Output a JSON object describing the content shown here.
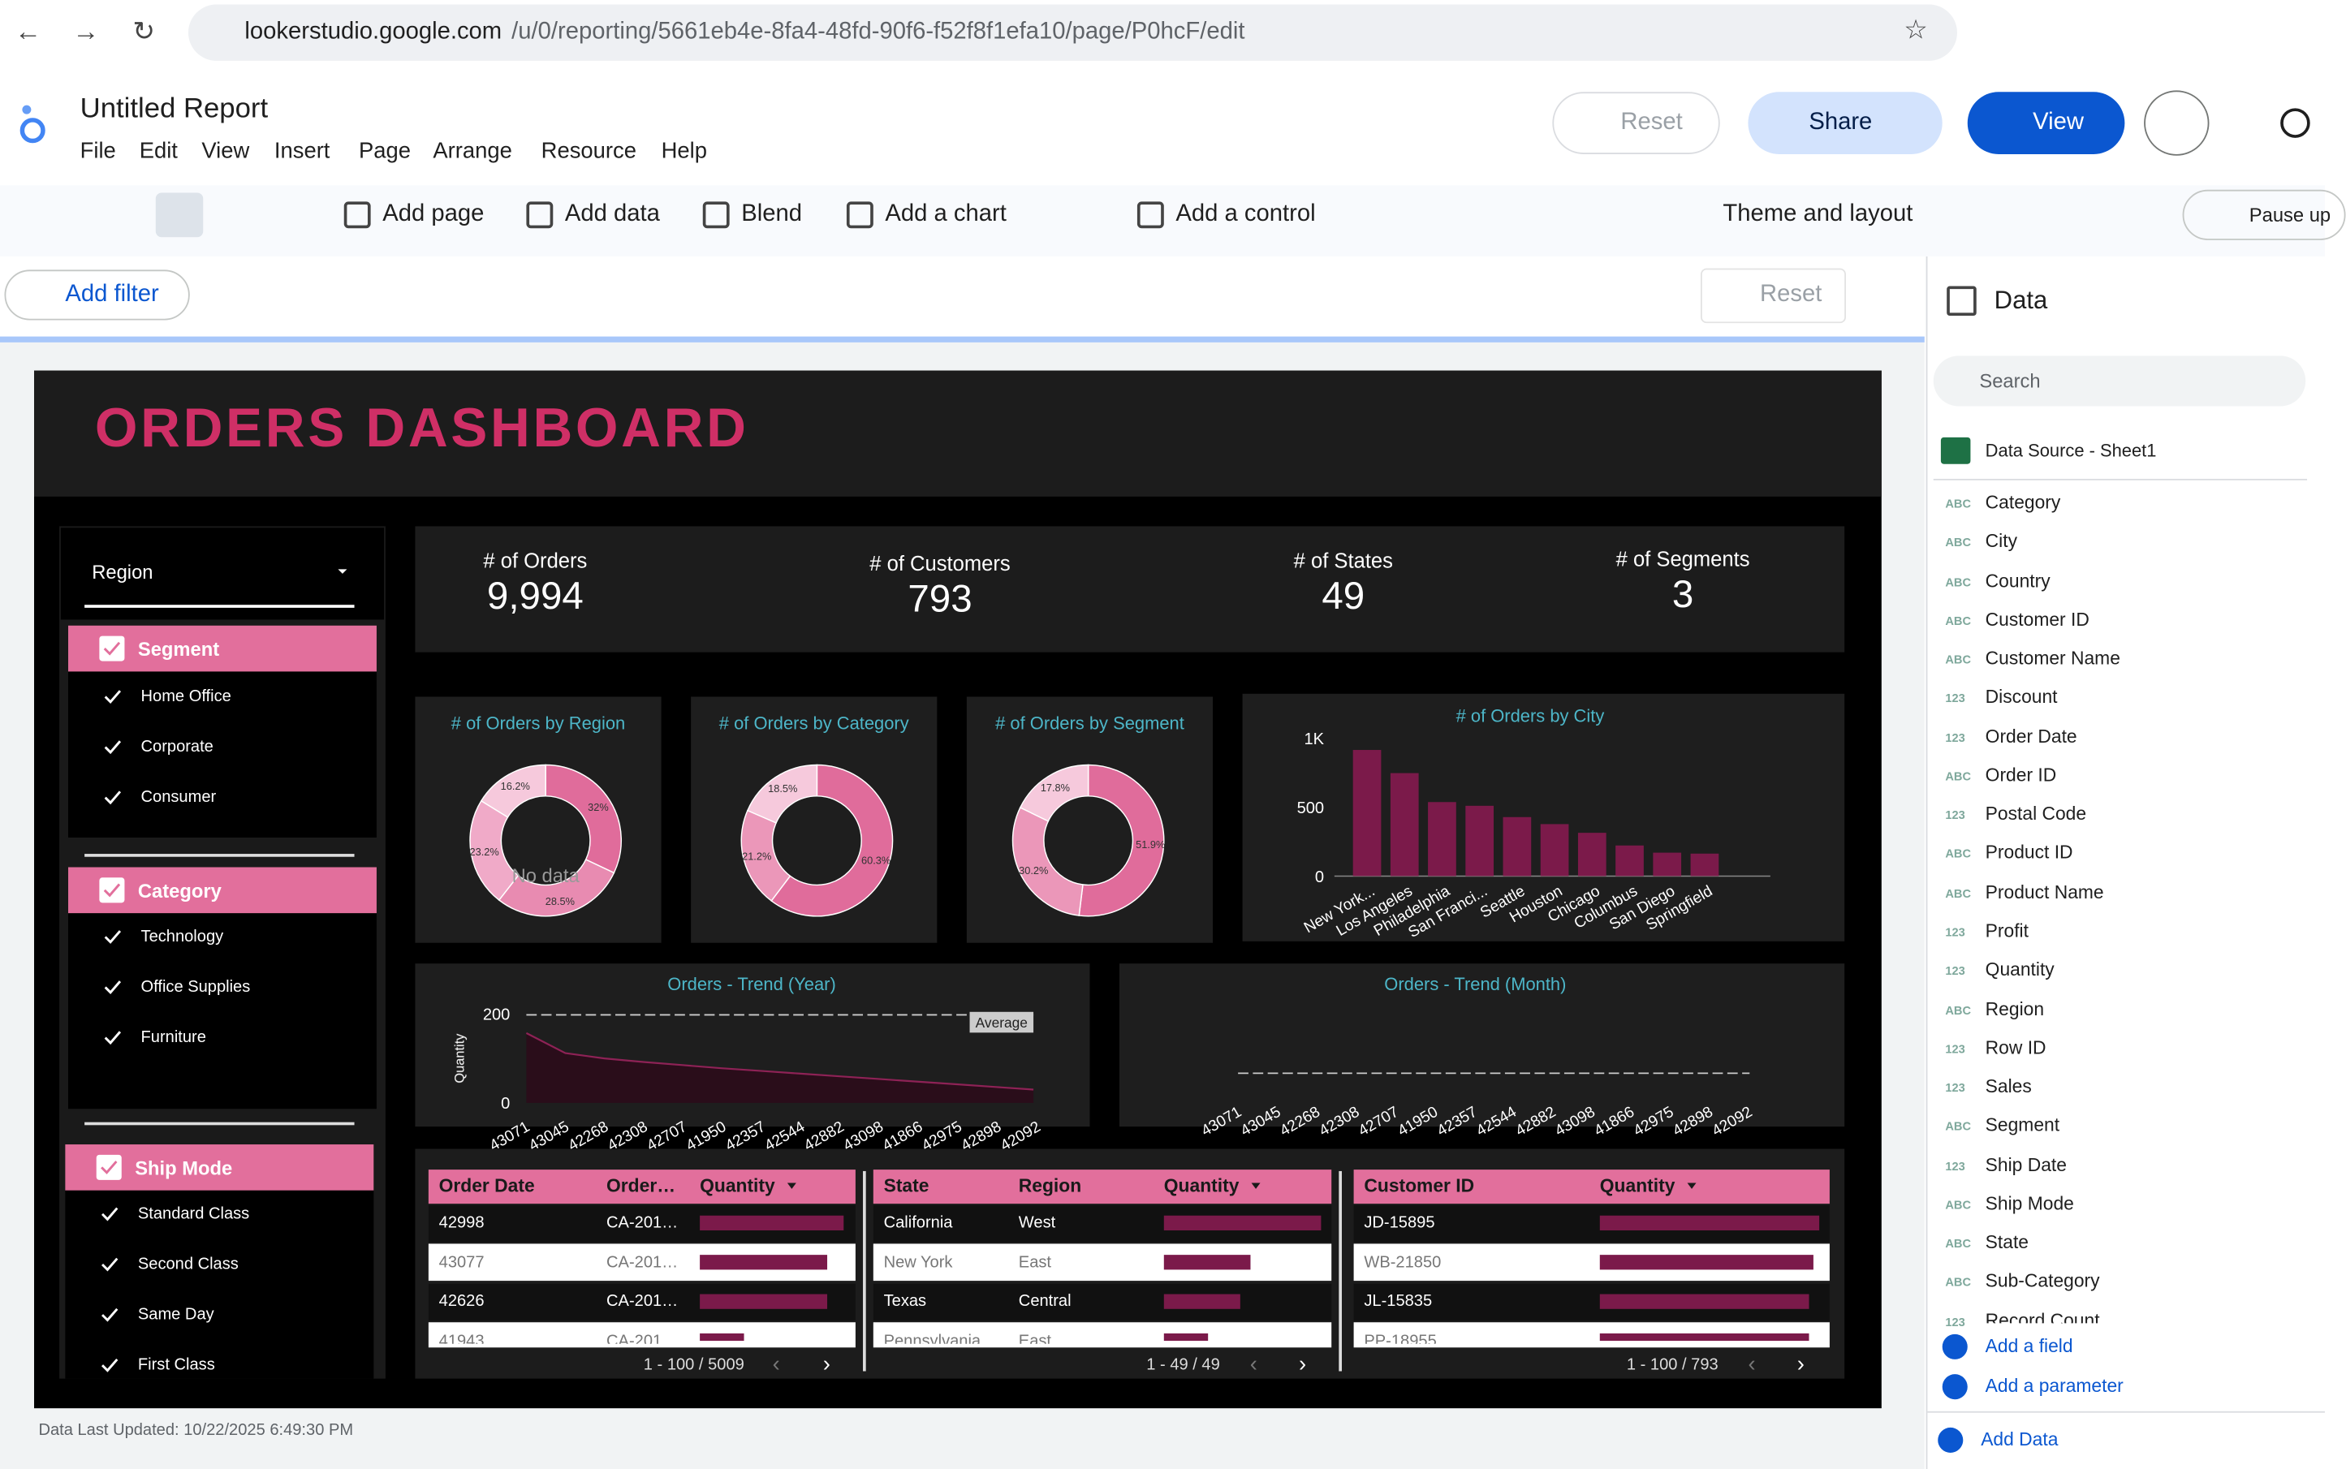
{
  "browser": {
    "url_host": "lookerstudio.google.com",
    "url_path": "/u/0/reporting/5661eb4e-8fa4-48fd-90f6-f52f8f1efa10/page/P0hcF/edit"
  },
  "header": {
    "title": "Untitled Report",
    "menu": [
      "File",
      "Edit",
      "View",
      "Insert",
      "Page",
      "Arrange",
      "Resource",
      "Help"
    ],
    "reset": "Reset",
    "share": "Share",
    "view": "View"
  },
  "toolbar": {
    "items": [
      "Add page",
      "Add data",
      "Blend",
      "Add a chart",
      "Add a control",
      "Theme and layout",
      "Pause up"
    ]
  },
  "filter_bar": {
    "add_filter": "Add filter",
    "reset": "Reset"
  },
  "dashboard": {
    "title": "ORDERS DASHBOARD",
    "region_control": "Region",
    "filters": [
      {
        "title": "Segment",
        "options": [
          "Home Office",
          "Corporate",
          "Consumer"
        ]
      },
      {
        "title": "Category",
        "options": [
          "Technology",
          "Office Supplies",
          "Furniture"
        ]
      },
      {
        "title": "Ship Mode",
        "options": [
          "Standard Class",
          "Second Class",
          "Same Day",
          "First Class"
        ]
      }
    ],
    "kpis": [
      {
        "label": "# of Orders",
        "value": "9,994"
      },
      {
        "label": "# of Customers",
        "value": "793"
      },
      {
        "label": "# of States",
        "value": "49"
      },
      {
        "label": "# of Segments",
        "value": "3"
      }
    ],
    "donuts": [
      {
        "title": "# of Orders by Region",
        "values": [
          32,
          28.5,
          23.2,
          16.2
        ],
        "value_labels": [
          "32%",
          "28.5%",
          "23.2%",
          "16.2%"
        ],
        "colors": [
          "#e06c9b",
          "#e88bb1",
          "#f0aac8",
          "#f6c9dc"
        ],
        "overlay": "No data"
      },
      {
        "title": "# of Orders by Category",
        "values": [
          60.3,
          21.2,
          18.5
        ],
        "value_labels": [
          "60.3%",
          "21.2%",
          "18.5%"
        ],
        "colors": [
          "#e06c9b",
          "#eb97b9",
          "#f6c9dc"
        ]
      },
      {
        "title": "# of Orders by Segment",
        "values": [
          51.9,
          30.2,
          17.8
        ],
        "value_labels": [
          "51.9%",
          "30.2%",
          "17.8%"
        ],
        "colors": [
          "#e06c9b",
          "#eb97b9",
          "#f6c9dc"
        ]
      }
    ],
    "city_chart": {
      "type": "bar",
      "title": "# of Orders by City",
      "categories": [
        "New York...",
        "Los Angeles",
        "Philadelphia",
        "San Franci...",
        "Seattle",
        "Houston",
        "Chicago",
        "Columbus",
        "San Diego",
        "Springfield"
      ],
      "values": [
        915,
        747,
        537,
        510,
        428,
        377,
        314,
        222,
        170,
        163
      ],
      "color": "#7b1a4a",
      "ylim": [
        0,
        1000
      ],
      "yticks": [
        0,
        500,
        {
          "value": 1000,
          "label": "1K"
        }
      ]
    },
    "trend_year": {
      "type": "line",
      "title": "Orders - Trend (Year)",
      "y_label": "Quantity",
      "categories": [
        "43071",
        "43045",
        "42268",
        "42308",
        "42707",
        "41950",
        "42357",
        "42544",
        "42882",
        "43098",
        "41866",
        "42975",
        "42898",
        "42092"
      ],
      "values": [
        157,
        112,
        100,
        92,
        85,
        78,
        72,
        66,
        60,
        54,
        48,
        42,
        36,
        30
      ],
      "color": "#8e2256",
      "ylim": [
        0,
        200
      ],
      "yticks": [
        0,
        200
      ],
      "average": 198,
      "average_label": "Average"
    },
    "trend_month": {
      "type": "line",
      "title": "Orders - Trend (Month)",
      "categories": [
        "43071",
        "43045",
        "42268",
        "42308",
        "42707",
        "41950",
        "42357",
        "42544",
        "42882",
        "43098",
        "41866",
        "42975",
        "42898",
        "42092"
      ]
    },
    "tables": [
      {
        "columns": [
          "Order Date",
          "Order…",
          "Quantity"
        ],
        "rows": [
          [
            "42998",
            "CA-201…"
          ],
          [
            "43077",
            "CA-201…"
          ],
          [
            "42626",
            "CA-201…"
          ],
          [
            "41943",
            "CA-201…"
          ]
        ],
        "quantity": [
          14,
          12.4,
          12.4,
          4.3
        ],
        "pagination": "1 - 100 / 5009"
      },
      {
        "columns": [
          "State",
          "Region",
          "Quantity"
        ],
        "rows": [
          [
            "California",
            "West"
          ],
          [
            "New York",
            "East"
          ],
          [
            "Texas",
            "Central"
          ],
          [
            "Pennsylvania",
            "East"
          ]
        ],
        "quantity": [
          7667,
          4224,
          3724,
          2153
        ],
        "pagination": "1 - 49 / 49"
      },
      {
        "columns": [
          "Customer ID",
          "Quantity"
        ],
        "rows": [
          [
            "JD-15895"
          ],
          [
            "WB-21850"
          ],
          [
            "JL-15835"
          ],
          [
            "PP-18955"
          ]
        ],
        "quantity": [
          150,
          146,
          143,
          143
        ],
        "pagination": "1 - 100 / 793"
      }
    ]
  },
  "data_panel": {
    "title": "Data",
    "search": "Search",
    "source": "Data Source - Sheet1",
    "fields": [
      {
        "type": "ABC",
        "name": "Category"
      },
      {
        "type": "ABC",
        "name": "City"
      },
      {
        "type": "ABC",
        "name": "Country"
      },
      {
        "type": "ABC",
        "name": "Customer ID"
      },
      {
        "type": "ABC",
        "name": "Customer Name"
      },
      {
        "type": "123",
        "name": "Discount"
      },
      {
        "type": "123",
        "name": "Order Date"
      },
      {
        "type": "ABC",
        "name": "Order ID"
      },
      {
        "type": "123",
        "name": "Postal Code"
      },
      {
        "type": "ABC",
        "name": "Product ID"
      },
      {
        "type": "ABC",
        "name": "Product Name"
      },
      {
        "type": "123",
        "name": "Profit"
      },
      {
        "type": "123",
        "name": "Quantity"
      },
      {
        "type": "ABC",
        "name": "Region"
      },
      {
        "type": "123",
        "name": "Row ID"
      },
      {
        "type": "123",
        "name": "Sales"
      },
      {
        "type": "ABC",
        "name": "Segment"
      },
      {
        "type": "123",
        "name": "Ship Date"
      },
      {
        "type": "ABC",
        "name": "Ship Mode"
      },
      {
        "type": "ABC",
        "name": "State"
      },
      {
        "type": "ABC",
        "name": "Sub-Category"
      },
      {
        "type": "123",
        "name": "Record Count"
      }
    ],
    "add_field": "Add a field",
    "add_parameter": "Add a parameter",
    "add_data": "Add Data"
  },
  "footer": "Data Last Updated: 10/22/2025 6:49:30 PM"
}
